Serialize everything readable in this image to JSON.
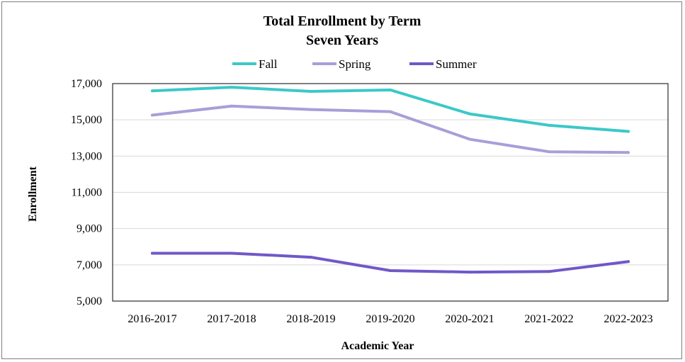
{
  "chart_data": {
    "type": "line",
    "title": "Total Enrollment by Term",
    "subtitle": "Seven Years",
    "xlabel": "Academic Year",
    "ylabel": "Enrollment",
    "categories": [
      "2016-2017",
      "2017-2018",
      "2018-2019",
      "2019-2020",
      "2020-2021",
      "2021-2022",
      "2022-2023"
    ],
    "ylim": [
      5000,
      17000
    ],
    "yticks": [
      5000,
      7000,
      9000,
      11000,
      13000,
      15000,
      17000
    ],
    "ytick_labels": [
      "5,000",
      "7,000",
      "9,000",
      "11,000",
      "13,000",
      "15,000",
      "17,000"
    ],
    "grid": true,
    "legend_position": "top",
    "series": [
      {
        "name": "Fall",
        "color": "#3cc8c8",
        "values": [
          16600,
          16800,
          16570,
          16650,
          15330,
          14700,
          14360
        ]
      },
      {
        "name": "Spring",
        "color": "#a89fd8",
        "values": [
          15260,
          15760,
          15570,
          15450,
          13930,
          13240,
          13200
        ]
      },
      {
        "name": "Summer",
        "color": "#7058c8",
        "values": [
          7640,
          7640,
          7420,
          6680,
          6600,
          6630,
          7180
        ]
      }
    ]
  }
}
